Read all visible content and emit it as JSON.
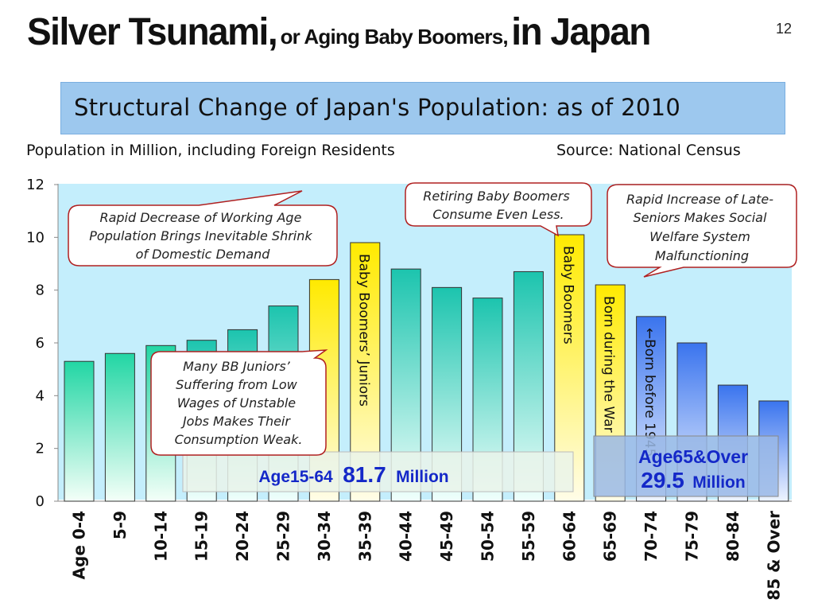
{
  "slide": {
    "title_part1": "Silver Tsunami,",
    "title_part2": "or Aging Baby Boomers,",
    "title_part3": "in Japan",
    "page_number": "12"
  },
  "banner": {
    "title": "Structural Change of Japan's Population: as of 2010"
  },
  "chart_data": {
    "type": "bar",
    "title": "Structural Change of Japan's Population: as of 2010",
    "ylabel": "Population in Million, including Foreign Residents",
    "source": "Source: National Census",
    "ylim": [
      0,
      12
    ],
    "yticks": [
      0,
      2,
      4,
      6,
      8,
      10,
      12
    ],
    "grid": false,
    "categories": [
      "Age 0-4",
      "5-9",
      "10-14",
      "15-19",
      "20-24",
      "25-29",
      "30-34",
      "35-39",
      "40-44",
      "45-49",
      "50-54",
      "55-59",
      "60-64",
      "65-69",
      "70-74",
      "75-79",
      "80-84",
      "85 & Over"
    ],
    "values": [
      5.3,
      5.6,
      5.9,
      6.1,
      6.5,
      7.4,
      8.4,
      9.8,
      8.8,
      8.1,
      7.7,
      8.7,
      10.1,
      8.2,
      7.0,
      6.0,
      4.4,
      3.8
    ],
    "bar_groups": [
      "young",
      "young",
      "young",
      "working",
      "working",
      "working",
      "highlight",
      "highlight",
      "working",
      "working",
      "working",
      "working",
      "highlight",
      "highlight",
      "senior",
      "senior",
      "senior",
      "senior"
    ],
    "colors": {
      "young": "#2fd4a0",
      "working": "#22c4b0",
      "highlight": "#ffee00",
      "senior": "#3f7ff0",
      "plot_bg": "#c4eefc"
    },
    "bar_labels": [
      {
        "bar": 7,
        "text": "Baby Boomers’ Juniors"
      },
      {
        "bar": 12,
        "text": "Baby Boomers"
      },
      {
        "bar": 13,
        "text": "Born during the War"
      },
      {
        "bar": 14,
        "text": "←Born before 1945"
      }
    ],
    "annotations": {
      "working_total": {
        "label": "Age15-64",
        "value": "81.7",
        "unit": "Million"
      },
      "senior_total_label": "Age65&Over",
      "senior_total_value": "29.5",
      "senior_total_unit": "Million"
    },
    "callouts": [
      {
        "lines": [
          "Rapid Decrease of Working Age",
          "Population Brings Inevitable Shrink",
          "of Domestic Demand"
        ]
      },
      {
        "lines": [
          "Retiring Baby Boomers",
          "Consume Even Less."
        ]
      },
      {
        "lines": [
          "Rapid Increase of Late-",
          "Seniors Makes Social",
          "Welfare System",
          "Malfunctioning"
        ]
      },
      {
        "lines": [
          "Many BB Juniors’",
          "Suffering from Low",
          "Wages of Unstable",
          "Jobs Makes Their",
          "Consumption Weak."
        ]
      }
    ]
  }
}
